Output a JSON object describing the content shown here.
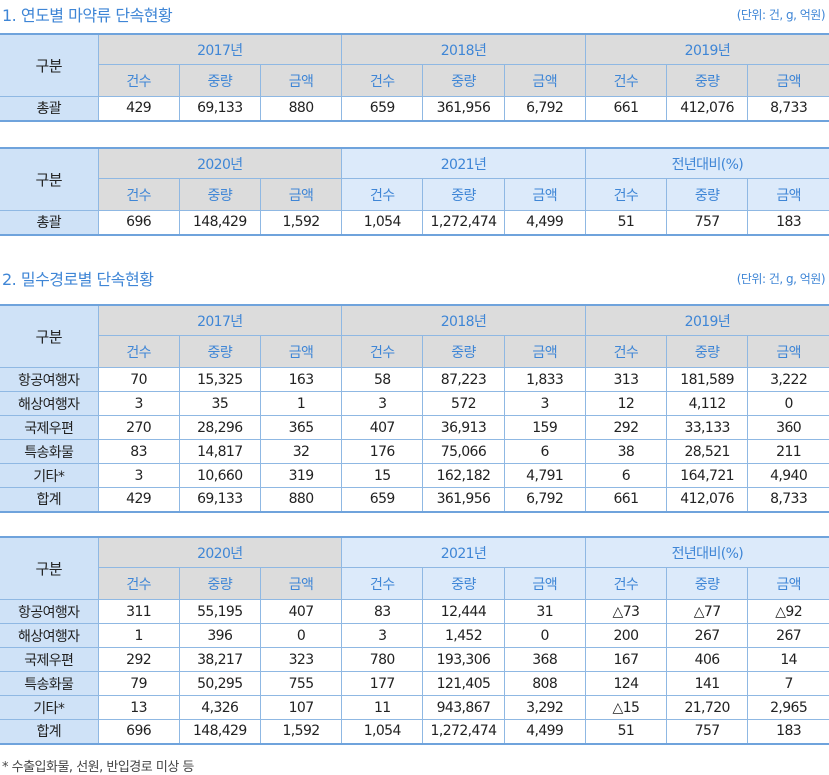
{
  "section1": {
    "title": "1. 연도별 마약류 단속현황",
    "unit": "(단위: 건, g, 억원)"
  },
  "section2": {
    "title": "2. 밀수경로별 단속현황",
    "unit": "(단위: 건, g, 억원)"
  },
  "sub_headers": [
    "건수",
    "중량",
    "금액"
  ],
  "tables": [
    {
      "label": "구분",
      "groups": [
        {
          "name": "2017년",
          "style": "gray"
        },
        {
          "name": "2018년",
          "style": "gray"
        },
        {
          "name": "2019년",
          "style": "gray"
        }
      ],
      "rows": [
        {
          "label": "총괄",
          "values": [
            "429",
            "69,133",
            "880",
            "659",
            "361,956",
            "6,792",
            "661",
            "412,076",
            "8,733"
          ]
        }
      ]
    },
    {
      "label": "구분",
      "groups": [
        {
          "name": "2020년",
          "style": "gray"
        },
        {
          "name": "2021년",
          "style": "blue"
        },
        {
          "name": "전년대비(%)",
          "style": "blue"
        }
      ],
      "rows": [
        {
          "label": "총괄",
          "values": [
            "696",
            "148,429",
            "1,592",
            "1,054",
            "1,272,474",
            "4,499",
            "51",
            "757",
            "183"
          ]
        }
      ]
    },
    {
      "label": "구분",
      "groups": [
        {
          "name": "2017년",
          "style": "gray"
        },
        {
          "name": "2018년",
          "style": "gray"
        },
        {
          "name": "2019년",
          "style": "gray"
        }
      ],
      "rows": [
        {
          "label": "항공여행자",
          "values": [
            "70",
            "15,325",
            "163",
            "58",
            "87,223",
            "1,833",
            "313",
            "181,589",
            "3,222"
          ]
        },
        {
          "label": "해상여행자",
          "values": [
            "3",
            "35",
            "1",
            "3",
            "572",
            "3",
            "12",
            "4,112",
            "0"
          ]
        },
        {
          "label": "국제우편",
          "values": [
            "270",
            "28,296",
            "365",
            "407",
            "36,913",
            "159",
            "292",
            "33,133",
            "360"
          ]
        },
        {
          "label": "특송화물",
          "values": [
            "83",
            "14,817",
            "32",
            "176",
            "75,066",
            "6",
            "38",
            "28,521",
            "211"
          ]
        },
        {
          "label": "기타*",
          "values": [
            "3",
            "10,660",
            "319",
            "15",
            "162,182",
            "4,791",
            "6",
            "164,721",
            "4,940"
          ]
        },
        {
          "label": "합계",
          "values": [
            "429",
            "69,133",
            "880",
            "659",
            "361,956",
            "6,792",
            "661",
            "412,076",
            "8,733"
          ]
        }
      ]
    },
    {
      "label": "구분",
      "groups": [
        {
          "name": "2020년",
          "style": "gray"
        },
        {
          "name": "2021년",
          "style": "blue"
        },
        {
          "name": "전년대비(%)",
          "style": "blue"
        }
      ],
      "rows": [
        {
          "label": "항공여행자",
          "values": [
            "311",
            "55,195",
            "407",
            "83",
            "12,444",
            "31",
            "△73",
            "△77",
            "△92"
          ]
        },
        {
          "label": "해상여행자",
          "values": [
            "1",
            "396",
            "0",
            "3",
            "1,452",
            "0",
            "200",
            "267",
            "267"
          ]
        },
        {
          "label": "국제우편",
          "values": [
            "292",
            "38,217",
            "323",
            "780",
            "193,306",
            "368",
            "167",
            "406",
            "14"
          ]
        },
        {
          "label": "특송화물",
          "values": [
            "79",
            "50,295",
            "755",
            "177",
            "121,405",
            "808",
            "124",
            "141",
            "7"
          ]
        },
        {
          "label": "기타*",
          "values": [
            "13",
            "4,326",
            "107",
            "11",
            "943,867",
            "3,292",
            "△15",
            "21,720",
            "2,965"
          ]
        },
        {
          "label": "합계",
          "values": [
            "696",
            "148,429",
            "1,592",
            "1,054",
            "1,272,474",
            "4,499",
            "51",
            "757",
            "183"
          ]
        }
      ]
    }
  ],
  "footnote": "* 수출입화물, 선원, 반입경로 미상 등"
}
